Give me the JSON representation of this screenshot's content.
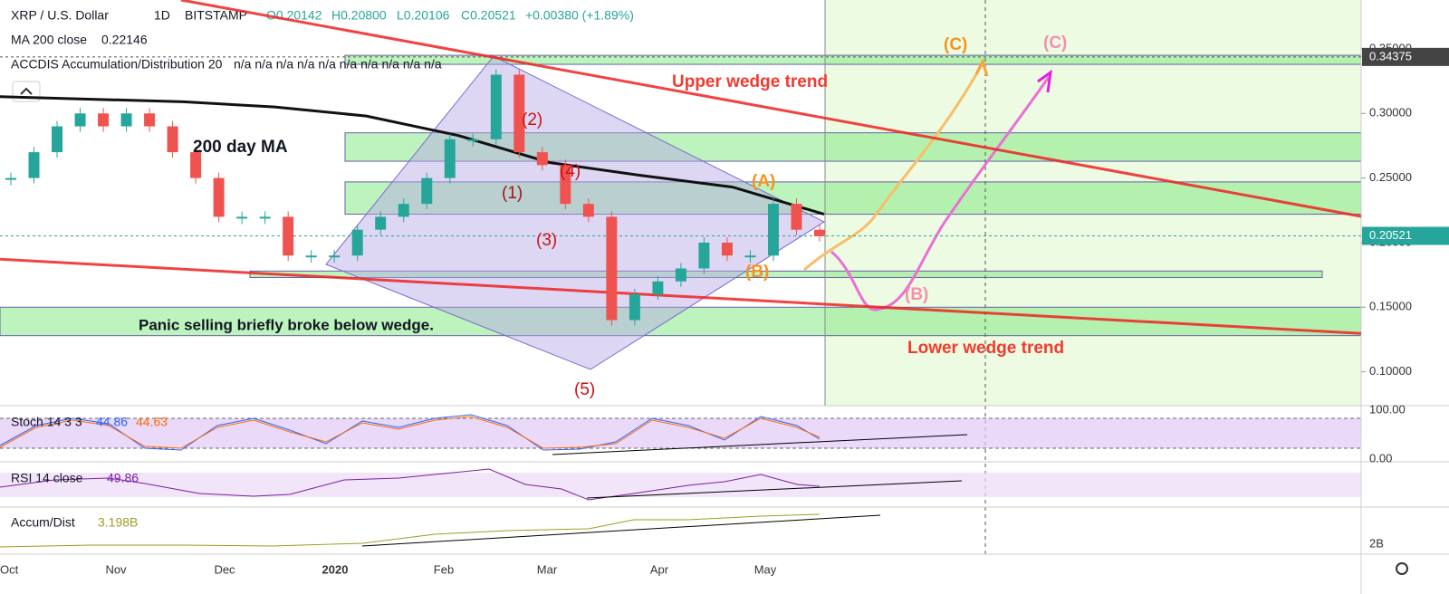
{
  "header": {
    "symbol": "XRP / U.S. Dollar",
    "interval": "1D",
    "exchange": "BITSTAMP",
    "open": "O0.20142",
    "high": "H0.20800",
    "low": "L0.20106",
    "close": "C0.20521",
    "change": "+0.00380 (+1.89%)"
  },
  "studies": {
    "ma": {
      "name": "MA 200 close",
      "value": "0.22146"
    },
    "accdis": {
      "name": "ACCDIS Accumulation/Distribution 20",
      "value": "n/a n/a n/a n/a n/a n/a n/a n/a n/a n/a"
    },
    "stoch": {
      "name": "Stoch 14 3 3",
      "k": "44.86",
      "d": "44.63",
      "top": "100.00",
      "bottom": "0.00"
    },
    "rsi": {
      "name": "RSI 14 close",
      "value": "49.86"
    },
    "accum": {
      "name": "Accum/Dist",
      "value": "3.198B",
      "tick": "2B"
    }
  },
  "price_axis": {
    "range": [
      0.0738,
      0.3878
    ],
    "ticks": [
      {
        "value": 0.35,
        "label": "0.35000"
      },
      {
        "value": 0.3,
        "label": "0.30000"
      },
      {
        "value": 0.25,
        "label": "0.25000"
      },
      {
        "value": 0.2,
        "label": "0.20000"
      },
      {
        "value": 0.15,
        "label": "0.15000"
      },
      {
        "value": 0.1,
        "label": "0.10000"
      }
    ],
    "markers": [
      {
        "value": 0.34375,
        "label": "0.34375"
      },
      {
        "value": 0.20521,
        "label": "0.20521"
      }
    ]
  },
  "time_axis": [
    "Oct",
    "Nov",
    "Dec",
    "2020",
    "Feb",
    "Mar",
    "Apr",
    "May"
  ],
  "weekly_close": [
    0.25,
    0.27,
    0.29,
    0.3,
    0.29,
    0.3,
    0.29,
    0.27,
    0.25,
    0.22,
    0.22,
    0.22,
    0.19,
    0.19,
    0.19,
    0.21,
    0.22,
    0.23,
    0.25,
    0.28,
    0.28,
    0.33,
    0.27,
    0.26,
    0.23,
    0.22,
    0.14,
    0.16,
    0.17,
    0.18,
    0.2,
    0.19,
    0.19,
    0.23,
    0.21,
    0.205
  ],
  "ma200": [
    0.313,
    0.311,
    0.309,
    0.305,
    0.298,
    0.283,
    0.262,
    0.252,
    0.243,
    0.222
  ],
  "zones": [
    {
      "hi": 0.345,
      "lo": 0.338
    },
    {
      "hi": 0.285,
      "lo": 0.263
    },
    {
      "hi": 0.247,
      "lo": 0.222
    },
    {
      "hi": 0.178,
      "lo": 0.173
    },
    {
      "hi": 0.15,
      "lo": 0.128
    }
  ],
  "trendlines": {
    "upper": [
      0.3878,
      0.2203
    ],
    "lower": [
      0.1872,
      0.1297
    ]
  },
  "annotations": {
    "upper_wedge": "Upper wedge trend",
    "lower_wedge": "Lower wedge trend",
    "ma_label": "200 day MA",
    "panic": "Panic selling briefly broke below wedge.",
    "w1": "(1)",
    "w2": "(2)",
    "w3": "(3)",
    "w4": "(4)",
    "w5": "(5)",
    "a": "(A)",
    "b_orange": "(B)",
    "b_pink": "(B)",
    "c_orange": "(C)",
    "c_pink": "(C)"
  }
}
